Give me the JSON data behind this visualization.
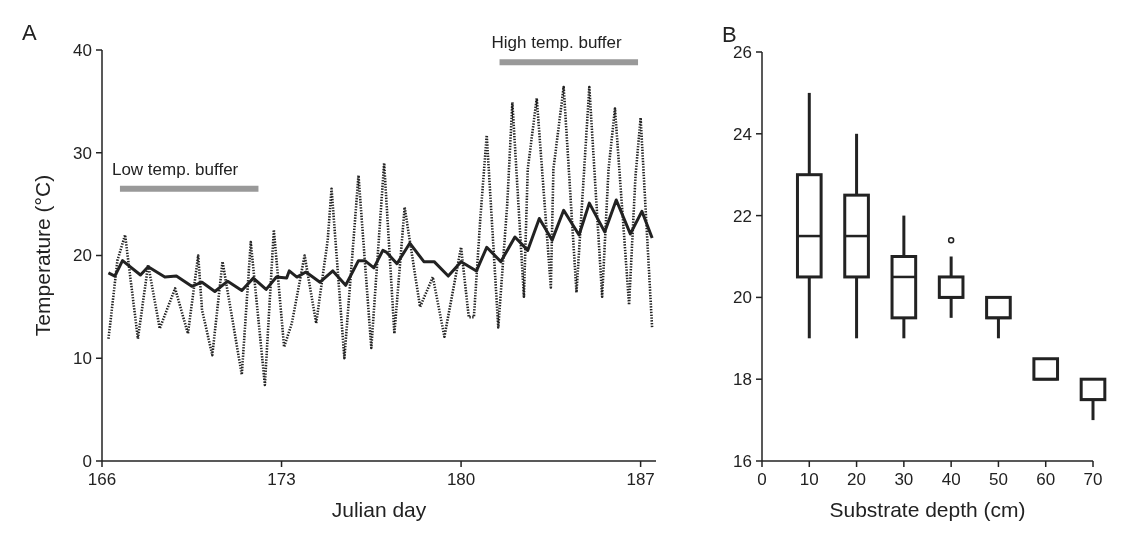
{
  "chart_data": [
    {
      "type": "line",
      "title": "A",
      "xlabel": "Julian day",
      "ylabel": "Temperature (°C)",
      "xlim": [
        166,
        187.6
      ],
      "xticks": [
        166,
        173,
        180,
        187
      ],
      "ylim": [
        0,
        40
      ],
      "yticks": [
        0,
        10,
        20,
        30,
        40
      ],
      "grid": false,
      "series": [
        {
          "name": "Low temp. buffer",
          "color": "#999999",
          "line_style": "solid",
          "x": [
            166.7,
            172.1
          ],
          "values": [
            26.5,
            26.5
          ]
        },
        {
          "name": "High temp. buffer",
          "color": "#999999",
          "line_style": "solid",
          "x": [
            181.5,
            186.9
          ],
          "values": [
            38.8,
            38.8
          ]
        },
        {
          "color": "#222222",
          "line_style": "dotted",
          "x": [
            166.25,
            166.3,
            166.6,
            166.9,
            167.4,
            167.8,
            168.25,
            168.85,
            169.35,
            169.75,
            169.9,
            170.3,
            170.7,
            171.45,
            171.8,
            172.35,
            172.7,
            173.1,
            173.4,
            173.9,
            174.35,
            174.8,
            174.95,
            175.45,
            176.0,
            176.5,
            177.0,
            177.4,
            177.8,
            178.4,
            178.9,
            179.35,
            180.0,
            180.3,
            180.5,
            180.75,
            181.0,
            181.45,
            181.8,
            182.0,
            182.45,
            182.6,
            182.95,
            183.5,
            183.6,
            184.0,
            184.5,
            184.8,
            185.0,
            185.5,
            185.75,
            186.0,
            186.55,
            186.8,
            187.0,
            187.45
          ],
          "values": [
            11.9,
            12.9,
            19.5,
            22.0,
            11.9,
            19.1,
            12.9,
            16.8,
            12.4,
            20.0,
            14.7,
            10.3,
            19.4,
            8.4,
            21.3,
            7.4,
            22.5,
            11.1,
            13.4,
            20.0,
            13.4,
            21.5,
            26.5,
            10.0,
            27.8,
            11.0,
            29.0,
            12.4,
            24.7,
            15.0,
            17.9,
            12.1,
            20.8,
            14.0,
            14.0,
            23.6,
            31.7,
            13.0,
            25.0,
            34.9,
            16.0,
            28.4,
            35.3,
            16.9,
            28.4,
            36.4,
            16.4,
            28.4,
            36.4,
            16.0,
            28.4,
            34.3,
            15.2,
            27.7,
            33.4,
            12.9
          ]
        },
        {
          "color": "#222222",
          "line_style": "solid",
          "x": [
            166.25,
            166.5,
            166.8,
            167.5,
            167.8,
            168.45,
            168.9,
            169.5,
            169.9,
            170.4,
            170.9,
            171.45,
            171.9,
            172.4,
            172.8,
            173.2,
            173.3,
            173.6,
            173.95,
            174.5,
            175.0,
            175.5,
            176.0,
            176.25,
            176.6,
            176.95,
            177.1,
            177.5,
            178.0,
            178.55,
            178.95,
            179.5,
            180.0,
            180.6,
            181.0,
            181.55,
            182.1,
            182.6,
            183.05,
            183.55,
            184.0,
            184.6,
            185.0,
            185.6,
            186.05,
            186.6,
            187.05,
            187.45
          ],
          "values": [
            18.3,
            18.0,
            19.5,
            18.1,
            18.9,
            17.9,
            18.0,
            17.0,
            17.4,
            16.5,
            17.5,
            16.6,
            17.8,
            16.7,
            17.9,
            17.8,
            18.5,
            17.9,
            18.4,
            17.4,
            18.5,
            17.1,
            19.5,
            19.5,
            18.8,
            20.5,
            20.3,
            19.2,
            21.2,
            19.4,
            19.4,
            18.0,
            19.4,
            18.5,
            20.8,
            19.4,
            21.8,
            20.5,
            23.6,
            21.5,
            24.4,
            22.0,
            25.1,
            22.3,
            25.4,
            22.1,
            24.3,
            21.7
          ]
        }
      ]
    },
    {
      "type": "box",
      "title": "B",
      "xlabel": "Substrate depth (cm)",
      "xlim": [
        0,
        70
      ],
      "xticks": [
        0,
        10,
        20,
        30,
        40,
        50,
        60,
        70
      ],
      "ylim": [
        16,
        26
      ],
      "yticks": [
        16,
        18,
        20,
        22,
        24,
        26
      ],
      "grid": false,
      "x": [
        10,
        20,
        30,
        40,
        50,
        60,
        70
      ],
      "boxes": [
        {
          "low": 19,
          "q1": 20.5,
          "median": 21.5,
          "q3": 23,
          "high": 25
        },
        {
          "low": 19,
          "q1": 20.5,
          "median": 21.5,
          "q3": 22.5,
          "high": 24
        },
        {
          "low": 19,
          "q1": 19.5,
          "median": 20.5,
          "q3": 21,
          "high": 22
        },
        {
          "low": 19.5,
          "q1": 20,
          "median": 20,
          "q3": 20.5,
          "high": 21,
          "outliers": [
            21.4
          ]
        },
        {
          "low": 19,
          "q1": 19.5,
          "median": 19.5,
          "q3": 20,
          "high": 20
        },
        {
          "low": 18,
          "q1": 18,
          "median": 18,
          "q3": 18.5,
          "high": 18.5
        },
        {
          "low": 17,
          "q1": 17.5,
          "median": 17.5,
          "q3": 18,
          "high": 18
        }
      ]
    }
  ]
}
